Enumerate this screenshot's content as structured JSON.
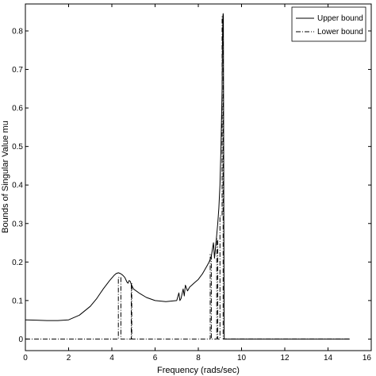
{
  "chart_data": {
    "type": "line",
    "xlabel": "Frequency (rads/sec)",
    "ylabel": "Bounds of Singular Value mu",
    "xlim": [
      0,
      16
    ],
    "ylim": [
      -0.03,
      0.87
    ],
    "xticks": [
      "0",
      "2",
      "4",
      "6",
      "8",
      "10",
      "12",
      "14",
      "16"
    ],
    "yticks": [
      "0",
      "0.1",
      "0.2",
      "0.3",
      "0.4",
      "0.5",
      "0.6",
      "0.7",
      "0.8"
    ],
    "grid": false,
    "legend_position": "top-right",
    "series": [
      {
        "name": "Upper bound",
        "style": "solid",
        "color": "#000000",
        "x": [
          0,
          0.5,
          1.0,
          1.5,
          2.0,
          2.5,
          3.0,
          3.3,
          3.6,
          3.9,
          4.1,
          4.2,
          4.3,
          4.4,
          4.5,
          4.6,
          4.7,
          4.75,
          4.8,
          4.85,
          4.9,
          5.0,
          5.3,
          5.6,
          6.0,
          6.5,
          7.0,
          7.1,
          7.15,
          7.2,
          7.3,
          7.35,
          7.4,
          7.5,
          7.6,
          7.7,
          7.8,
          8.0,
          8.2,
          8.4,
          8.5,
          8.6,
          8.7,
          8.75,
          8.8,
          8.85,
          8.9,
          8.95,
          9.0,
          9.05,
          9.1,
          9.12,
          9.14,
          9.15,
          9.16,
          9.18,
          9.2,
          10,
          11,
          12,
          13,
          14,
          15
        ],
        "y": [
          0.05,
          0.049,
          0.048,
          0.048,
          0.05,
          0.062,
          0.085,
          0.105,
          0.13,
          0.152,
          0.165,
          0.17,
          0.172,
          0.17,
          0.166,
          0.16,
          0.148,
          0.145,
          0.152,
          0.15,
          0.142,
          0.13,
          0.118,
          0.108,
          0.1,
          0.097,
          0.1,
          0.12,
          0.1,
          0.105,
          0.13,
          0.112,
          0.14,
          0.125,
          0.135,
          0.14,
          0.145,
          0.155,
          0.17,
          0.19,
          0.2,
          0.215,
          0.25,
          0.21,
          0.24,
          0.27,
          0.3,
          0.34,
          0.4,
          0.5,
          0.65,
          0.78,
          0.84,
          0.845,
          0.84,
          0.3,
          0,
          0,
          0,
          0,
          0,
          0,
          0
        ]
      },
      {
        "name": "Lower bound",
        "style": "dashdot",
        "color": "#000000",
        "x": [
          0,
          4.3,
          4.3,
          4.42,
          4.42,
          4.9,
          4.9,
          4.92,
          4.92,
          8.55,
          8.55,
          8.6,
          8.6,
          8.85,
          8.85,
          8.9,
          8.9,
          9.0,
          9.0,
          9.1,
          9.1,
          9.15,
          9.15,
          15
        ],
        "y": [
          0,
          0,
          0.16,
          0.16,
          0,
          0,
          0.145,
          0.145,
          0,
          0,
          0.22,
          0.22,
          0,
          0,
          0.26,
          0.26,
          0,
          0,
          0.32,
          0.32,
          0.84,
          0.84,
          0,
          0
        ]
      }
    ]
  }
}
